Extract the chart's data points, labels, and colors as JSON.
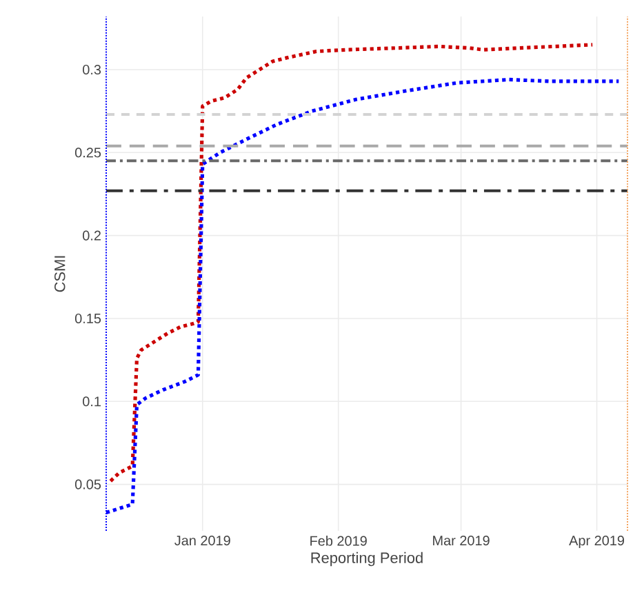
{
  "chart_data": {
    "type": "line",
    "xlabel": "Reporting Period",
    "ylabel": "CSMI",
    "series": [
      {
        "color": "#cc0000",
        "line_style": "dotted",
        "x": [
          "2018-12-11",
          "2018-12-13",
          "2018-12-16",
          "2018-12-17",
          "2018-12-18",
          "2018-12-21",
          "2018-12-24",
          "2018-12-27",
          "2018-12-30",
          "2018-12-31",
          "2019-01-01",
          "2019-01-03",
          "2019-01-06",
          "2019-01-09",
          "2019-01-11",
          "2019-01-14",
          "2019-01-17",
          "2019-01-20",
          "2019-01-27",
          "2019-02-03",
          "2019-02-14",
          "2019-02-24",
          "2019-03-03",
          "2019-03-06",
          "2019-03-14",
          "2019-03-31"
        ],
        "values": [
          0.052,
          0.057,
          0.061,
          0.126,
          0.131,
          0.136,
          0.141,
          0.145,
          0.147,
          0.148,
          0.278,
          0.281,
          0.283,
          0.288,
          0.295,
          0.3,
          0.305,
          0.307,
          0.311,
          0.312,
          0.313,
          0.314,
          0.313,
          0.312,
          0.313,
          0.315
        ]
      },
      {
        "color": "#0000ff",
        "line_style": "dotted",
        "x": [
          "2018-12-10",
          "2018-12-16",
          "2018-12-17",
          "2018-12-19",
          "2018-12-23",
          "2018-12-28",
          "2018-12-31",
          "2019-01-01",
          "2019-01-05",
          "2019-01-11",
          "2019-01-18",
          "2019-01-26",
          "2019-02-05",
          "2019-02-16",
          "2019-02-28",
          "2019-03-12",
          "2019-03-21",
          "2019-04-02",
          "2019-04-06"
        ],
        "values": [
          0.033,
          0.038,
          0.098,
          0.102,
          0.107,
          0.112,
          0.116,
          0.243,
          0.25,
          0.258,
          0.267,
          0.275,
          0.282,
          0.287,
          0.292,
          0.294,
          0.293,
          0.293,
          0.293
        ]
      }
    ],
    "xlim": [
      "2018-12-10",
      "2019-04-08"
    ],
    "ylim": [
      0.022,
      0.332
    ],
    "xticks": [
      {
        "value": "2019-01-01",
        "label": "Jan 2019"
      },
      {
        "value": "2019-02-01",
        "label": "Feb 2019"
      },
      {
        "value": "2019-03-01",
        "label": "Mar 2019"
      },
      {
        "value": "2019-04-01",
        "label": "Apr 2019"
      }
    ],
    "yticks": [
      0.05,
      0.1,
      0.15,
      0.2,
      0.25,
      0.3
    ],
    "ref_lines": [
      {
        "axis": "y",
        "value": 0.273,
        "color": "#d3d3d3",
        "line_style": "dashed"
      },
      {
        "axis": "y",
        "value": 0.254,
        "color": "#a9a9a9",
        "line_style": "longdash"
      },
      {
        "axis": "y",
        "value": 0.245,
        "color": "#696969",
        "line_style": "dashdot"
      },
      {
        "axis": "y",
        "value": 0.227,
        "color": "#333333",
        "line_style": "longdashdot"
      },
      {
        "axis": "x",
        "value": "2018-12-10",
        "color": "#0000ff",
        "line_style": "dotted"
      },
      {
        "axis": "x",
        "value": "2019-04-08",
        "color": "#f4a460",
        "line_style": "dotted"
      }
    ],
    "grid": true,
    "marker": "none"
  }
}
